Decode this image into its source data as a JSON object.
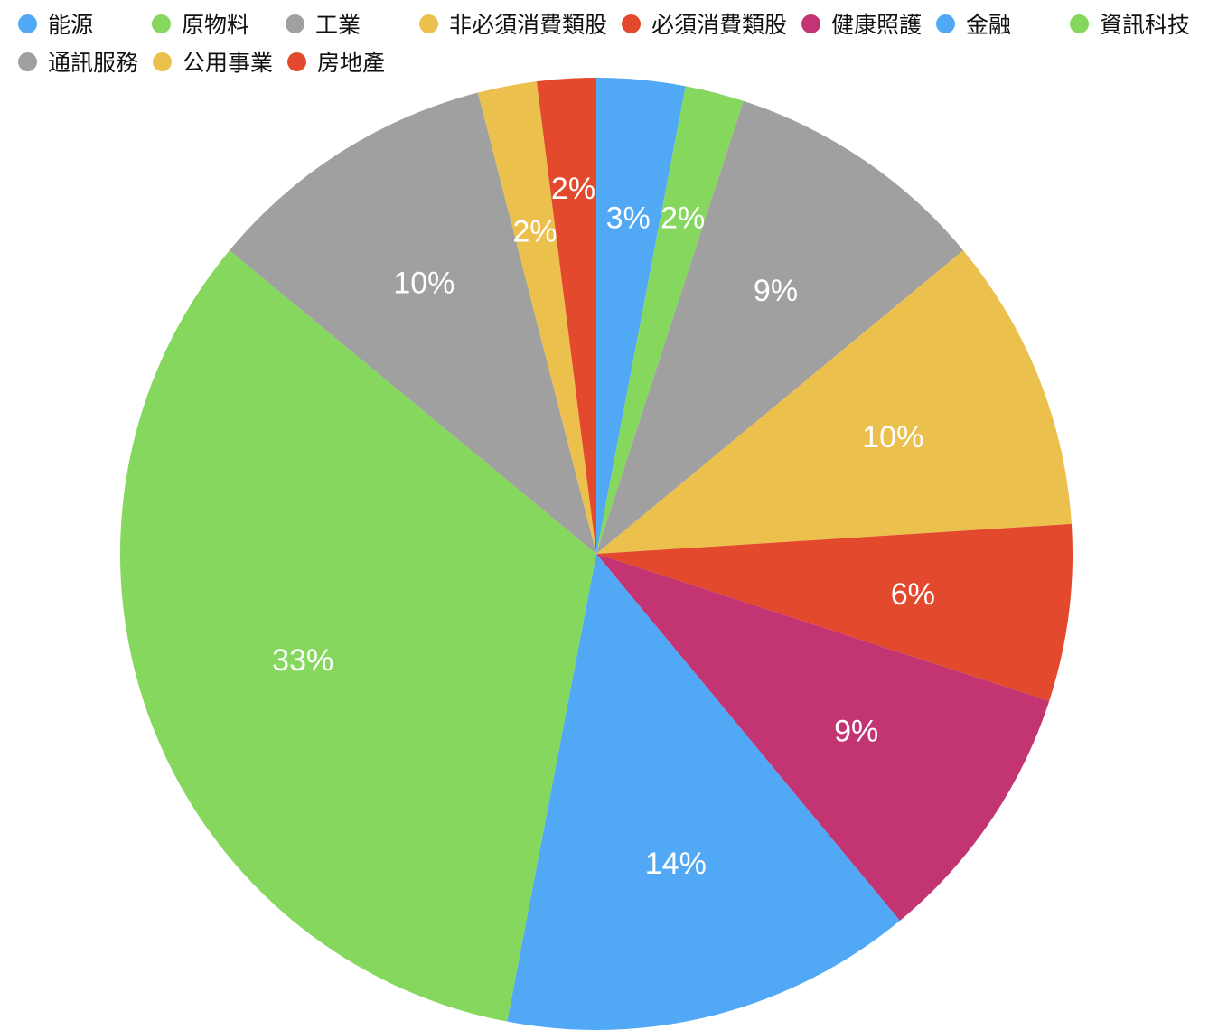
{
  "page": {
    "background": "#ffffff"
  },
  "legend": {
    "position": "top-left",
    "items": [
      {
        "label": "能源",
        "color": "#51A8F5"
      },
      {
        "label": "原物料",
        "color": "#85D75E"
      },
      {
        "label": "工業",
        "color": "#A0A0A0"
      },
      {
        "label": "非必須消費類股",
        "color": "#ECC04D"
      },
      {
        "label": "必須消費類股",
        "color": "#E3492D"
      },
      {
        "label": "健康照護",
        "color": "#C33572"
      },
      {
        "label": "金融",
        "color": "#51A8F5"
      },
      {
        "label": "資訊科技",
        "color": "#85D75E"
      },
      {
        "label": "通訊服務",
        "color": "#A0A0A0"
      },
      {
        "label": "公用事業",
        "color": "#ECC04D"
      },
      {
        "label": "房地產",
        "color": "#E3492D"
      }
    ]
  },
  "chart_data": {
    "type": "pie",
    "title": "",
    "categories": [
      "能源",
      "原物料",
      "工業",
      "非必須消費類股",
      "必須消費類股",
      "健康照護",
      "金融",
      "資訊科技",
      "通訊服務",
      "公用事業",
      "房地產"
    ],
    "values": [
      3,
      2,
      9,
      10,
      6,
      9,
      14,
      33,
      10,
      2,
      2
    ],
    "unit": "%",
    "total": 100,
    "slice_labels": [
      "3%",
      "2%",
      "9%",
      "10%",
      "6%",
      "9%",
      "14%",
      "33%",
      "10%",
      "2%",
      "2%"
    ],
    "colors": [
      "#51A8F5",
      "#85D75E",
      "#A0A0A0",
      "#ECC04D",
      "#E3492D",
      "#C33572",
      "#51A8F5",
      "#85D75E",
      "#A0A0A0",
      "#ECC04D",
      "#E3492D"
    ],
    "palette_cycle": [
      "#51A8F5",
      "#85D75E",
      "#A0A0A0",
      "#ECC04D",
      "#E3492D",
      "#C33572"
    ],
    "slice_label_color": "#ffffff",
    "start_angle_deg": 0,
    "direction": "clockwise",
    "legend_position": "top",
    "grid": false
  }
}
